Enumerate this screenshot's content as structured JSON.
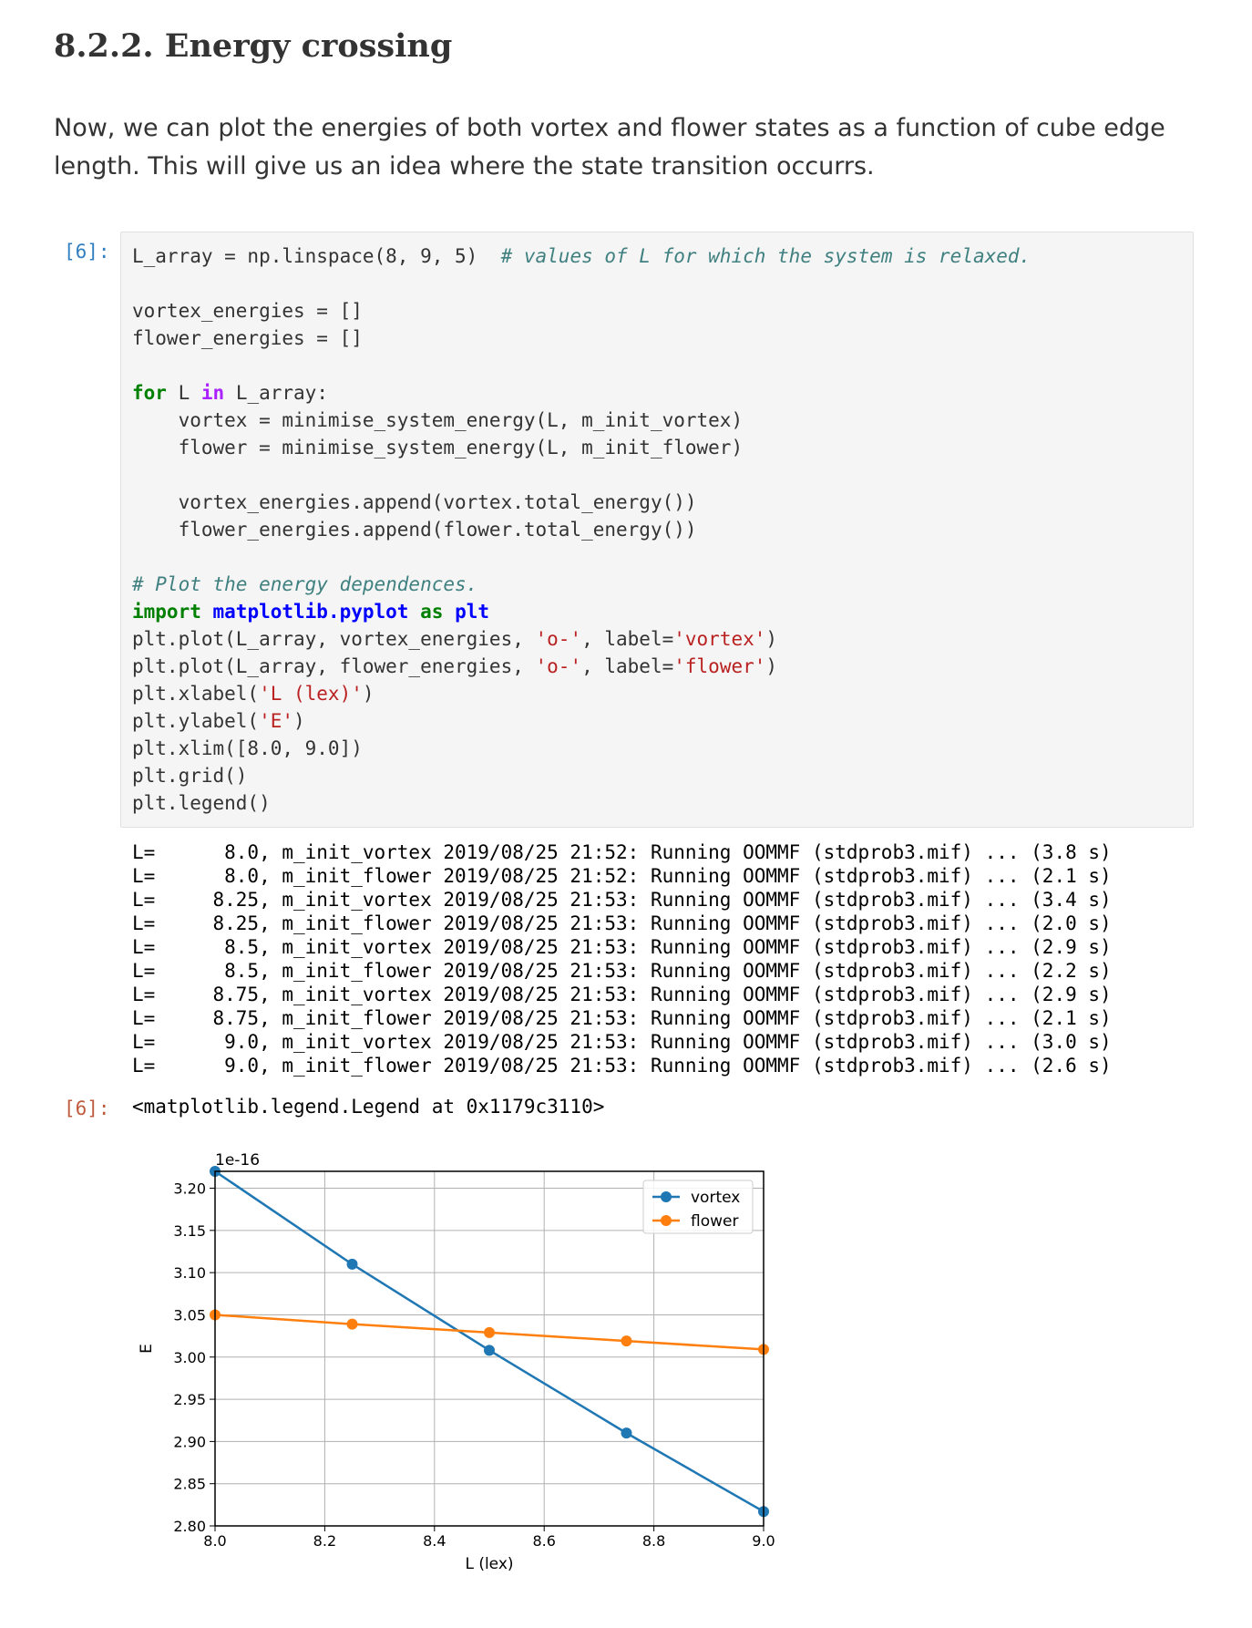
{
  "heading": "8.2.2. Energy crossing",
  "paragraph": "Now, we can plot the energies of both vortex and flower states as a function of cube edge length. This will give us an idea where the state transition occurrs.",
  "input_prompt": "[6]:",
  "output_prompt": "[6]:",
  "code": {
    "line1": "L_array = np.linspace(8, 9, 5)",
    "line1_comment": "# values of L for which the system is relaxed.",
    "line2": "vortex_energies = []",
    "line3": "flower_energies = []",
    "line4_for": "for",
    "line4_mid": " L ",
    "line4_in": "in",
    "line4_end": " L_array:",
    "line5": "    vortex = minimise_system_energy(L, m_init_vortex)",
    "line6": "    flower = minimise_system_energy(L, m_init_flower)",
    "line7": "    vortex_energies.append(vortex.total_energy())",
    "line8": "    flower_energies.append(flower.total_energy())",
    "line9_comment": "# Plot the energy dependences.",
    "line10_import": "import",
    "line10_module": "matplotlib.pyplot",
    "line10_as": "as",
    "line10_alias": "plt",
    "line11_a": "plt.plot(L_array, vortex_energies, ",
    "line11_s1": "'o-'",
    "line11_b": ", label=",
    "line11_s2": "'vortex'",
    "line11_c": ")",
    "line12_a": "plt.plot(L_array, flower_energies, ",
    "line12_s1": "'o-'",
    "line12_b": ", label=",
    "line12_s2": "'flower'",
    "line12_c": ")",
    "line13_a": "plt.xlabel(",
    "line13_s": "'L (lex)'",
    "line13_b": ")",
    "line14_a": "plt.ylabel(",
    "line14_s": "'E'",
    "line14_b": ")",
    "line15": "plt.xlim([8.0, 9.0])",
    "line16": "plt.grid()",
    "line17": "plt.legend()"
  },
  "stream_lines": [
    "L=      8.0, m_init_vortex 2019/08/25 21:52: Running OOMMF (stdprob3.mif) ... (3.8 s)",
    "L=      8.0, m_init_flower 2019/08/25 21:52: Running OOMMF (stdprob3.mif) ... (2.1 s)",
    "L=     8.25, m_init_vortex 2019/08/25 21:53: Running OOMMF (stdprob3.mif) ... (3.4 s)",
    "L=     8.25, m_init_flower 2019/08/25 21:53: Running OOMMF (stdprob3.mif) ... (2.0 s)",
    "L=      8.5, m_init_vortex 2019/08/25 21:53: Running OOMMF (stdprob3.mif) ... (2.9 s)",
    "L=      8.5, m_init_flower 2019/08/25 21:53: Running OOMMF (stdprob3.mif) ... (2.2 s)",
    "L=     8.75, m_init_vortex 2019/08/25 21:53: Running OOMMF (stdprob3.mif) ... (2.9 s)",
    "L=     8.75, m_init_flower 2019/08/25 21:53: Running OOMMF (stdprob3.mif) ... (2.1 s)",
    "L=      9.0, m_init_vortex 2019/08/25 21:53: Running OOMMF (stdprob3.mif) ... (3.0 s)",
    "L=      9.0, m_init_flower 2019/08/25 21:53: Running OOMMF (stdprob3.mif) ... (2.6 s)"
  ],
  "result_text": "<matplotlib.legend.Legend at 0x1179c3110>",
  "chart_data": {
    "type": "line",
    "xlabel": "L (lex)",
    "ylabel": "E",
    "offset_label": "1e-16",
    "xlim": [
      8.0,
      9.0
    ],
    "ylim": [
      2.8,
      3.22
    ],
    "xticks": [
      "8.0",
      "8.2",
      "8.4",
      "8.6",
      "8.8",
      "9.0"
    ],
    "xtick_values": [
      8.0,
      8.2,
      8.4,
      8.6,
      8.8,
      9.0
    ],
    "yticks": [
      "2.80",
      "2.85",
      "2.90",
      "2.95",
      "3.00",
      "3.05",
      "3.10",
      "3.15",
      "3.20"
    ],
    "ytick_values": [
      2.8,
      2.85,
      2.9,
      2.95,
      3.0,
      3.05,
      3.1,
      3.15,
      3.2
    ],
    "grid": true,
    "legend_position": "top-right",
    "x": [
      8.0,
      8.25,
      8.5,
      8.75,
      9.0
    ],
    "series": [
      {
        "name": "vortex",
        "color": "#1f77b4",
        "values": [
          3.22,
          3.11,
          3.008,
          2.91,
          2.817
        ]
      },
      {
        "name": "flower",
        "color": "#ff7f0e",
        "values": [
          3.05,
          3.039,
          3.029,
          3.019,
          3.009
        ]
      }
    ]
  }
}
